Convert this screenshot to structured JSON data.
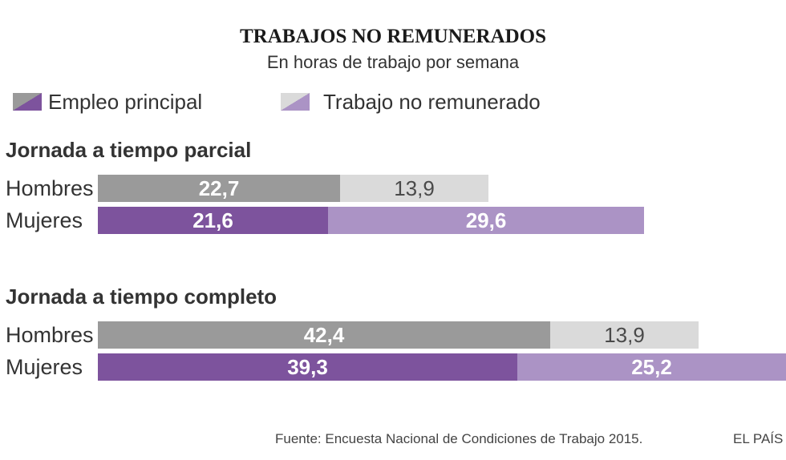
{
  "header": {
    "title": "TRABAJOS NO REMUNERADOS",
    "subtitle": "En horas de trabajo por semana"
  },
  "legend": {
    "position": "top-left",
    "items": [
      {
        "label": "Empleo principal",
        "swatch": [
          "#9a9a9a",
          "#7d539d"
        ]
      },
      {
        "label": "Trabajo no remunerado",
        "swatch": [
          "#dadada",
          "#ab93c5"
        ]
      }
    ]
  },
  "palette": {
    "Hombres": {
      "bars": [
        "#9a9a9a",
        "#dadada"
      ],
      "labels": [
        "#ffffff",
        "#4a4a4a"
      ]
    },
    "Mujeres": {
      "bars": [
        "#7d539d",
        "#ab93c5"
      ],
      "labels": [
        "#ffffff",
        "#ffffff"
      ]
    }
  },
  "chart_data": [
    {
      "type": "bar",
      "orientation": "horizontal",
      "stacked": true,
      "grid": false,
      "title": "Jornada a tiempo parcial",
      "categories": [
        "Hombres",
        "Mujeres"
      ],
      "series": [
        {
          "name": "Empleo principal",
          "values": [
            22.7,
            21.6
          ],
          "labels": [
            "22,7",
            "21,6"
          ]
        },
        {
          "name": "Trabajo no remunerado",
          "values": [
            13.9,
            29.6
          ],
          "labels": [
            "13,9",
            "29,6"
          ]
        }
      ]
    },
    {
      "type": "bar",
      "orientation": "horizontal",
      "stacked": true,
      "grid": false,
      "title": "Jornada a tiempo completo",
      "categories": [
        "Hombres",
        "Mujeres"
      ],
      "series": [
        {
          "name": "Empleo principal",
          "values": [
            42.4,
            39.3
          ],
          "labels": [
            "42,4",
            "39,3"
          ]
        },
        {
          "name": "Trabajo no remunerado",
          "values": [
            13.9,
            25.2
          ],
          "labels": [
            "13,9",
            "25,2"
          ]
        }
      ]
    }
  ],
  "footer": {
    "source": "Fuente: Encuesta Nacional de Condiciones de Trabajo 2015.",
    "brand": "EL PAÍS"
  }
}
